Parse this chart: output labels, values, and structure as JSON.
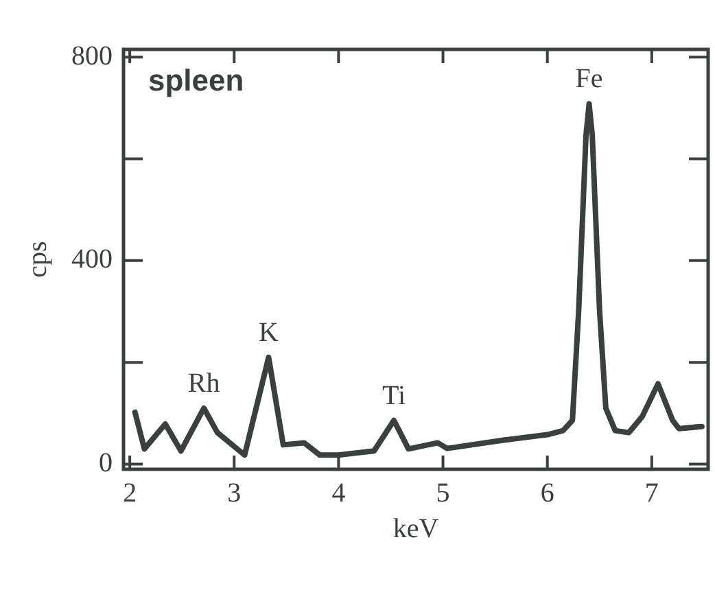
{
  "chart_data": {
    "type": "line",
    "xlabel": "keV",
    "ylabel": "cps",
    "xlim": [
      1.94,
      7.54
    ],
    "xticks": [
      2,
      3,
      4,
      5,
      6,
      7
    ],
    "ylim": [
      -10,
      815
    ],
    "yticks": [
      0,
      {
        "value": 200,
        "label": null
      },
      400,
      {
        "value": 600,
        "label": null
      },
      800
    ],
    "grid": false,
    "legend": false,
    "marker": "none",
    "line_style": "solid",
    "series": [
      {
        "color": "#3a403d",
        "x": [
          2.05,
          2.14,
          2.34,
          2.49,
          2.71,
          2.84,
          3.1,
          3.33,
          3.47,
          3.67,
          3.82,
          4.0,
          4.34,
          4.53,
          4.67,
          4.95,
          5.04,
          5.57,
          6.0,
          6.15,
          6.24,
          6.3,
          6.37,
          6.4,
          6.43,
          6.5,
          6.56,
          6.65,
          6.78,
          6.91,
          7.06,
          7.2,
          7.26,
          7.48
        ],
        "values": [
          102,
          30,
          79,
          26,
          110,
          62,
          18,
          210,
          38,
          42,
          18,
          18,
          26,
          86,
          30,
          42,
          31,
          47,
          58,
          66,
          86,
          302,
          646,
          708,
          646,
          302,
          110,
          66,
          62,
          94,
          158,
          86,
          70,
          74
        ]
      }
    ],
    "annotations": [
      "spleen",
      {
        "text": "Rh",
        "x": 2.71,
        "y": 110
      },
      {
        "text": "K",
        "x": 3.33,
        "y": 210
      },
      {
        "text": "Ti",
        "x": 4.53,
        "y": 86
      },
      {
        "text": "Fe",
        "x": 6.4,
        "y": 708
      }
    ]
  }
}
